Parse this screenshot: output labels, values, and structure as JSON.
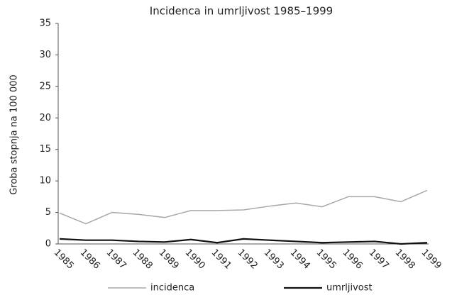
{
  "chart_data": {
    "type": "line",
    "title": "Incidenca in umrljivost 1985–1999",
    "y_label": "Groba stopnja na 100 000",
    "categories": [
      "1985",
      "1986",
      "1987",
      "1988",
      "1989",
      "1990",
      "1991",
      "1992",
      "1993",
      "1994",
      "1995",
      "1996",
      "1997",
      "1998",
      "1999"
    ],
    "series": [
      {
        "name": "incidenca",
        "color": "#a8a8a8",
        "values": [
          4.9,
          3.2,
          5.0,
          4.7,
          4.2,
          5.3,
          5.3,
          5.4,
          6.0,
          6.5,
          5.9,
          7.5,
          7.5,
          6.7,
          8.5
        ]
      },
      {
        "name": "umrljivost",
        "color": "#111111",
        "values": [
          0.8,
          0.6,
          0.6,
          0.4,
          0.3,
          0.7,
          0.2,
          0.8,
          0.6,
          0.4,
          0.2,
          0.3,
          0.4,
          0.0,
          0.2
        ]
      }
    ],
    "ylim": [
      0,
      35
    ],
    "yticks": [
      0,
      5,
      10,
      15,
      20,
      25,
      30,
      35
    ],
    "grid": false,
    "legend": "bottom"
  }
}
